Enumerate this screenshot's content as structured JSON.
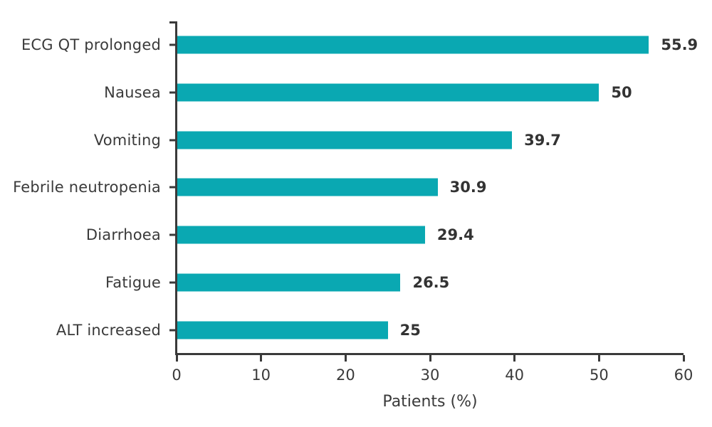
{
  "chart_data": {
    "type": "bar",
    "orientation": "horizontal",
    "categories": [
      "ECG QT prolonged",
      "Nausea",
      "Vomiting",
      "Febrile neutropenia",
      "Diarrhoea",
      "Fatigue",
      "ALT increased"
    ],
    "values": [
      55.9,
      50,
      39.7,
      30.9,
      29.4,
      26.5,
      25
    ],
    "value_labels": [
      "55.9",
      "50",
      "39.7",
      "30.9",
      "29.4",
      "26.5",
      "25"
    ],
    "title": "",
    "xlabel": "Patients (%)",
    "ylabel": "",
    "xlim": [
      0,
      60
    ],
    "xticks": [
      0,
      10,
      20,
      30,
      40,
      50,
      60
    ],
    "grid": false,
    "legend": "none",
    "bar_color": "#0aa8b2",
    "axis_color": "#3a3a3a",
    "text_color": "#3a3a3a",
    "value_label_color": "#333333"
  }
}
